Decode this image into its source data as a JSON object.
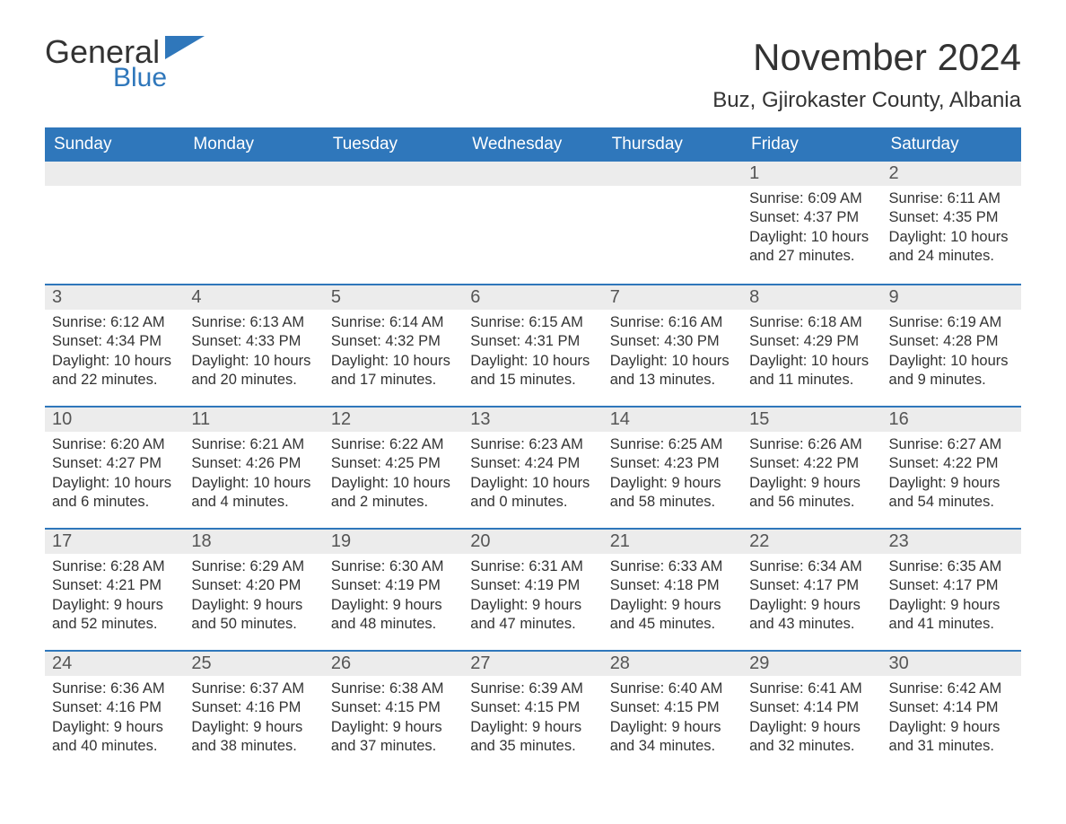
{
  "logo": {
    "word1": "General",
    "word2": "Blue",
    "color_primary": "#2f77bb",
    "color_text": "#333333"
  },
  "title": "November 2024",
  "location": "Buz, Gjirokaster County, Albania",
  "colors": {
    "header_bg": "#2f77bb",
    "header_text": "#ffffff",
    "daynum_bg": "#ececec",
    "row_border": "#2f77bb",
    "body_text": "#333333",
    "page_bg": "#ffffff"
  },
  "fonts": {
    "title_size": 42,
    "location_size": 24,
    "header_size": 19,
    "daynum_size": 20,
    "body_size": 16.5
  },
  "days_of_week": [
    "Sunday",
    "Monday",
    "Tuesday",
    "Wednesday",
    "Thursday",
    "Friday",
    "Saturday"
  ],
  "weeks": [
    [
      null,
      null,
      null,
      null,
      null,
      {
        "n": "1",
        "sunrise": "Sunrise: 6:09 AM",
        "sunset": "Sunset: 4:37 PM",
        "daylight": "Daylight: 10 hours and 27 minutes."
      },
      {
        "n": "2",
        "sunrise": "Sunrise: 6:11 AM",
        "sunset": "Sunset: 4:35 PM",
        "daylight": "Daylight: 10 hours and 24 minutes."
      }
    ],
    [
      {
        "n": "3",
        "sunrise": "Sunrise: 6:12 AM",
        "sunset": "Sunset: 4:34 PM",
        "daylight": "Daylight: 10 hours and 22 minutes."
      },
      {
        "n": "4",
        "sunrise": "Sunrise: 6:13 AM",
        "sunset": "Sunset: 4:33 PM",
        "daylight": "Daylight: 10 hours and 20 minutes."
      },
      {
        "n": "5",
        "sunrise": "Sunrise: 6:14 AM",
        "sunset": "Sunset: 4:32 PM",
        "daylight": "Daylight: 10 hours and 17 minutes."
      },
      {
        "n": "6",
        "sunrise": "Sunrise: 6:15 AM",
        "sunset": "Sunset: 4:31 PM",
        "daylight": "Daylight: 10 hours and 15 minutes."
      },
      {
        "n": "7",
        "sunrise": "Sunrise: 6:16 AM",
        "sunset": "Sunset: 4:30 PM",
        "daylight": "Daylight: 10 hours and 13 minutes."
      },
      {
        "n": "8",
        "sunrise": "Sunrise: 6:18 AM",
        "sunset": "Sunset: 4:29 PM",
        "daylight": "Daylight: 10 hours and 11 minutes."
      },
      {
        "n": "9",
        "sunrise": "Sunrise: 6:19 AM",
        "sunset": "Sunset: 4:28 PM",
        "daylight": "Daylight: 10 hours and 9 minutes."
      }
    ],
    [
      {
        "n": "10",
        "sunrise": "Sunrise: 6:20 AM",
        "sunset": "Sunset: 4:27 PM",
        "daylight": "Daylight: 10 hours and 6 minutes."
      },
      {
        "n": "11",
        "sunrise": "Sunrise: 6:21 AM",
        "sunset": "Sunset: 4:26 PM",
        "daylight": "Daylight: 10 hours and 4 minutes."
      },
      {
        "n": "12",
        "sunrise": "Sunrise: 6:22 AM",
        "sunset": "Sunset: 4:25 PM",
        "daylight": "Daylight: 10 hours and 2 minutes."
      },
      {
        "n": "13",
        "sunrise": "Sunrise: 6:23 AM",
        "sunset": "Sunset: 4:24 PM",
        "daylight": "Daylight: 10 hours and 0 minutes."
      },
      {
        "n": "14",
        "sunrise": "Sunrise: 6:25 AM",
        "sunset": "Sunset: 4:23 PM",
        "daylight": "Daylight: 9 hours and 58 minutes."
      },
      {
        "n": "15",
        "sunrise": "Sunrise: 6:26 AM",
        "sunset": "Sunset: 4:22 PM",
        "daylight": "Daylight: 9 hours and 56 minutes."
      },
      {
        "n": "16",
        "sunrise": "Sunrise: 6:27 AM",
        "sunset": "Sunset: 4:22 PM",
        "daylight": "Daylight: 9 hours and 54 minutes."
      }
    ],
    [
      {
        "n": "17",
        "sunrise": "Sunrise: 6:28 AM",
        "sunset": "Sunset: 4:21 PM",
        "daylight": "Daylight: 9 hours and 52 minutes."
      },
      {
        "n": "18",
        "sunrise": "Sunrise: 6:29 AM",
        "sunset": "Sunset: 4:20 PM",
        "daylight": "Daylight: 9 hours and 50 minutes."
      },
      {
        "n": "19",
        "sunrise": "Sunrise: 6:30 AM",
        "sunset": "Sunset: 4:19 PM",
        "daylight": "Daylight: 9 hours and 48 minutes."
      },
      {
        "n": "20",
        "sunrise": "Sunrise: 6:31 AM",
        "sunset": "Sunset: 4:19 PM",
        "daylight": "Daylight: 9 hours and 47 minutes."
      },
      {
        "n": "21",
        "sunrise": "Sunrise: 6:33 AM",
        "sunset": "Sunset: 4:18 PM",
        "daylight": "Daylight: 9 hours and 45 minutes."
      },
      {
        "n": "22",
        "sunrise": "Sunrise: 6:34 AM",
        "sunset": "Sunset: 4:17 PM",
        "daylight": "Daylight: 9 hours and 43 minutes."
      },
      {
        "n": "23",
        "sunrise": "Sunrise: 6:35 AM",
        "sunset": "Sunset: 4:17 PM",
        "daylight": "Daylight: 9 hours and 41 minutes."
      }
    ],
    [
      {
        "n": "24",
        "sunrise": "Sunrise: 6:36 AM",
        "sunset": "Sunset: 4:16 PM",
        "daylight": "Daylight: 9 hours and 40 minutes."
      },
      {
        "n": "25",
        "sunrise": "Sunrise: 6:37 AM",
        "sunset": "Sunset: 4:16 PM",
        "daylight": "Daylight: 9 hours and 38 minutes."
      },
      {
        "n": "26",
        "sunrise": "Sunrise: 6:38 AM",
        "sunset": "Sunset: 4:15 PM",
        "daylight": "Daylight: 9 hours and 37 minutes."
      },
      {
        "n": "27",
        "sunrise": "Sunrise: 6:39 AM",
        "sunset": "Sunset: 4:15 PM",
        "daylight": "Daylight: 9 hours and 35 minutes."
      },
      {
        "n": "28",
        "sunrise": "Sunrise: 6:40 AM",
        "sunset": "Sunset: 4:15 PM",
        "daylight": "Daylight: 9 hours and 34 minutes."
      },
      {
        "n": "29",
        "sunrise": "Sunrise: 6:41 AM",
        "sunset": "Sunset: 4:14 PM",
        "daylight": "Daylight: 9 hours and 32 minutes."
      },
      {
        "n": "30",
        "sunrise": "Sunrise: 6:42 AM",
        "sunset": "Sunset: 4:14 PM",
        "daylight": "Daylight: 9 hours and 31 minutes."
      }
    ]
  ]
}
